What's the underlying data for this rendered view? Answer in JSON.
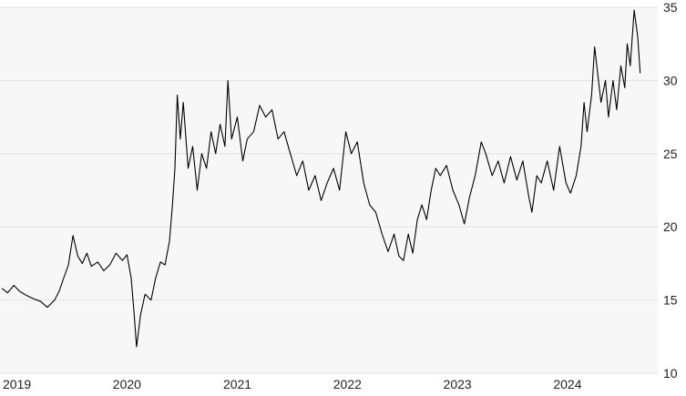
{
  "chart_data": {
    "type": "line",
    "title": "",
    "xlabel": "",
    "ylabel": "",
    "ylim": [
      10,
      35
    ],
    "xlim": [
      "2019-01-01",
      "2024-10-25"
    ],
    "y_ticks": [
      "10",
      "15",
      "20",
      "25",
      "30",
      "35"
    ],
    "x_ticks": [
      {
        "label": "2019",
        "date": "2019-01-01"
      },
      {
        "label": "2020",
        "date": "2020-01-01"
      },
      {
        "label": "2021",
        "date": "2021-01-01"
      },
      {
        "label": "2022",
        "date": "2022-01-01"
      },
      {
        "label": "2023",
        "date": "2023-01-01"
      },
      {
        "label": "2024",
        "date": "2024-01-01"
      }
    ],
    "grid": "horizontal",
    "y_axis_position": "right",
    "colors": {
      "line": "#000000",
      "plot_background": "#f7f7f7",
      "grid": "#e2e2e2"
    },
    "series": [
      {
        "points": [
          [
            "2019-01-01",
            15.8
          ],
          [
            "2019-01-20",
            15.5
          ],
          [
            "2019-02-10",
            16.0
          ],
          [
            "2019-03-01",
            15.6
          ],
          [
            "2019-03-25",
            15.3
          ],
          [
            "2019-04-15",
            15.1
          ],
          [
            "2019-05-10",
            14.9
          ],
          [
            "2019-06-01",
            14.5
          ],
          [
            "2019-06-25",
            15.0
          ],
          [
            "2019-07-10",
            15.6
          ],
          [
            "2019-07-25",
            16.5
          ],
          [
            "2019-08-10",
            17.4
          ],
          [
            "2019-08-25",
            19.4
          ],
          [
            "2019-09-10",
            18.0
          ],
          [
            "2019-09-25",
            17.5
          ],
          [
            "2019-10-10",
            18.2
          ],
          [
            "2019-10-25",
            17.3
          ],
          [
            "2019-11-15",
            17.6
          ],
          [
            "2019-12-05",
            17.0
          ],
          [
            "2019-12-25",
            17.4
          ],
          [
            "2020-01-15",
            18.2
          ],
          [
            "2020-02-05",
            17.7
          ],
          [
            "2020-02-20",
            18.1
          ],
          [
            "2020-03-05",
            16.5
          ],
          [
            "2020-03-15",
            14.0
          ],
          [
            "2020-03-23",
            11.8
          ],
          [
            "2020-04-05",
            14.0
          ],
          [
            "2020-04-20",
            15.4
          ],
          [
            "2020-05-10",
            15.0
          ],
          [
            "2020-05-25",
            16.5
          ],
          [
            "2020-06-10",
            17.6
          ],
          [
            "2020-06-25",
            17.4
          ],
          [
            "2020-07-10",
            19.0
          ],
          [
            "2020-07-20",
            21.5
          ],
          [
            "2020-07-28",
            24.0
          ],
          [
            "2020-08-05",
            29.0
          ],
          [
            "2020-08-15",
            26.0
          ],
          [
            "2020-08-25",
            28.5
          ],
          [
            "2020-09-10",
            24.0
          ],
          [
            "2020-09-25",
            25.5
          ],
          [
            "2020-10-10",
            22.5
          ],
          [
            "2020-10-25",
            25.0
          ],
          [
            "2020-11-10",
            24.0
          ],
          [
            "2020-11-25",
            26.5
          ],
          [
            "2020-12-10",
            25.0
          ],
          [
            "2020-12-25",
            27.0
          ],
          [
            "2021-01-10",
            25.5
          ],
          [
            "2021-01-20",
            30.0
          ],
          [
            "2021-02-01",
            26.0
          ],
          [
            "2021-02-20",
            27.5
          ],
          [
            "2021-03-10",
            24.5
          ],
          [
            "2021-03-25",
            26.0
          ],
          [
            "2021-04-15",
            26.5
          ],
          [
            "2021-05-05",
            28.3
          ],
          [
            "2021-05-25",
            27.5
          ],
          [
            "2021-06-15",
            28.0
          ],
          [
            "2021-07-05",
            26.0
          ],
          [
            "2021-07-25",
            26.5
          ],
          [
            "2021-08-15",
            25.0
          ],
          [
            "2021-09-05",
            23.5
          ],
          [
            "2021-09-25",
            24.5
          ],
          [
            "2021-10-15",
            22.5
          ],
          [
            "2021-11-05",
            23.5
          ],
          [
            "2021-11-25",
            21.8
          ],
          [
            "2021-12-15",
            23.0
          ],
          [
            "2022-01-05",
            24.0
          ],
          [
            "2022-01-25",
            22.5
          ],
          [
            "2022-02-15",
            26.5
          ],
          [
            "2022-03-05",
            25.0
          ],
          [
            "2022-03-25",
            25.8
          ],
          [
            "2022-04-15",
            23.0
          ],
          [
            "2022-05-05",
            21.5
          ],
          [
            "2022-05-25",
            21.0
          ],
          [
            "2022-06-15",
            19.5
          ],
          [
            "2022-07-05",
            18.3
          ],
          [
            "2022-07-25",
            19.5
          ],
          [
            "2022-08-10",
            18.0
          ],
          [
            "2022-08-25",
            17.7
          ],
          [
            "2022-09-10",
            19.5
          ],
          [
            "2022-09-25",
            18.2
          ],
          [
            "2022-10-10",
            20.5
          ],
          [
            "2022-10-25",
            21.5
          ],
          [
            "2022-11-10",
            20.5
          ],
          [
            "2022-11-25",
            22.5
          ],
          [
            "2022-12-10",
            24.0
          ],
          [
            "2022-12-25",
            23.5
          ],
          [
            "2023-01-15",
            24.2
          ],
          [
            "2023-02-05",
            22.5
          ],
          [
            "2023-02-25",
            21.5
          ],
          [
            "2023-03-15",
            20.2
          ],
          [
            "2023-04-01",
            22.0
          ],
          [
            "2023-04-20",
            23.5
          ],
          [
            "2023-05-10",
            25.8
          ],
          [
            "2023-05-25",
            25.0
          ],
          [
            "2023-06-15",
            23.5
          ],
          [
            "2023-07-05",
            24.5
          ],
          [
            "2023-07-25",
            23.0
          ],
          [
            "2023-08-15",
            24.8
          ],
          [
            "2023-09-05",
            23.2
          ],
          [
            "2023-09-25",
            24.5
          ],
          [
            "2023-10-15",
            22.0
          ],
          [
            "2023-10-25",
            21.0
          ],
          [
            "2023-11-10",
            23.5
          ],
          [
            "2023-11-25",
            23.0
          ],
          [
            "2023-12-15",
            24.5
          ],
          [
            "2024-01-05",
            22.5
          ],
          [
            "2024-01-25",
            25.5
          ],
          [
            "2024-02-15",
            23.0
          ],
          [
            "2024-03-01",
            22.3
          ],
          [
            "2024-03-20",
            23.5
          ],
          [
            "2024-04-05",
            25.5
          ],
          [
            "2024-04-15",
            28.5
          ],
          [
            "2024-04-25",
            26.5
          ],
          [
            "2024-05-10",
            29.0
          ],
          [
            "2024-05-20",
            32.3
          ],
          [
            "2024-05-30",
            30.5
          ],
          [
            "2024-06-10",
            28.5
          ],
          [
            "2024-06-25",
            30.0
          ],
          [
            "2024-07-05",
            27.5
          ],
          [
            "2024-07-20",
            30.0
          ],
          [
            "2024-08-01",
            28.0
          ],
          [
            "2024-08-15",
            31.0
          ],
          [
            "2024-08-28",
            29.5
          ],
          [
            "2024-09-05",
            32.5
          ],
          [
            "2024-09-15",
            31.0
          ],
          [
            "2024-09-28",
            34.8
          ],
          [
            "2024-10-10",
            33.0
          ],
          [
            "2024-10-18",
            30.5
          ]
        ]
      }
    ]
  }
}
